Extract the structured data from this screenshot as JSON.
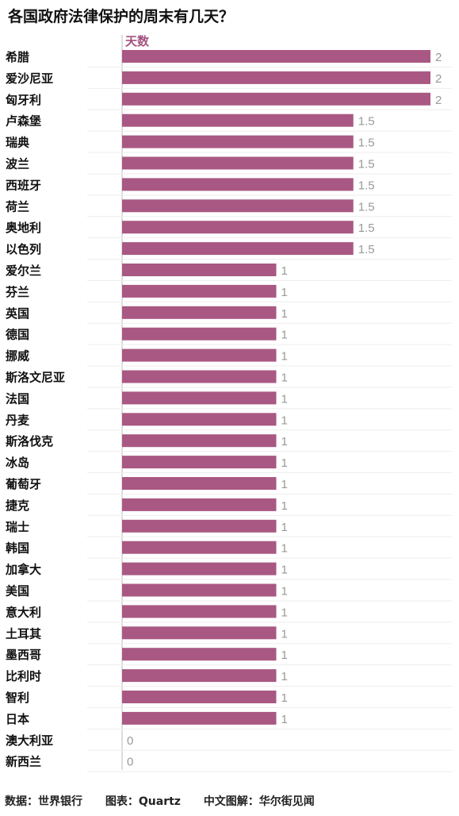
{
  "title": "各国政府法律保护的周末有几天？",
  "footer": {
    "source": "数据：世界银行",
    "chart_by": "图表：Quartz",
    "translated_by": "中文图解：华尔街见闻"
  },
  "colors": {
    "bar": "#a95883",
    "unit": "#a4537f",
    "value_text": "#999999",
    "axis": "#bbbbbb",
    "grid": "#eeeeee"
  },
  "chart_data": {
    "type": "bar",
    "orientation": "horizontal",
    "unit_label": "天数",
    "xlim": [
      0,
      2
    ],
    "categories": [
      "希腊",
      "爱沙尼亚",
      "匈牙利",
      "卢森堡",
      "瑞典",
      "波兰",
      "西班牙",
      "荷兰",
      "奥地利",
      "以色列",
      "爱尔兰",
      "芬兰",
      "英国",
      "德国",
      "挪威",
      "斯洛文尼亚",
      "法国",
      "丹麦",
      "斯洛伐克",
      "冰岛",
      "葡萄牙",
      "捷克",
      "瑞士",
      "韩国",
      "加拿大",
      "美国",
      "意大利",
      "土耳其",
      "墨西哥",
      "比利时",
      "智利",
      "日本",
      "澳大利亚",
      "新西兰"
    ],
    "values": [
      2,
      2,
      2,
      1.5,
      1.5,
      1.5,
      1.5,
      1.5,
      1.5,
      1.5,
      1,
      1,
      1,
      1,
      1,
      1,
      1,
      1,
      1,
      1,
      1,
      1,
      1,
      1,
      1,
      1,
      1,
      1,
      1,
      1,
      1,
      1,
      0,
      0
    ]
  }
}
